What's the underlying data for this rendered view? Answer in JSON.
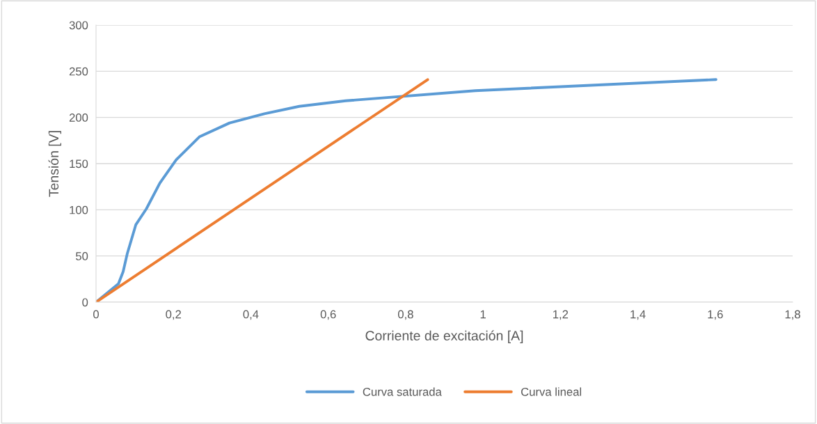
{
  "chart_data": {
    "type": "line",
    "xlabel": "Corriente de excitación [A]",
    "ylabel": "Tensión [V]",
    "xlim": [
      0,
      1.8
    ],
    "xticks": [
      0,
      {
        "value": 0.2,
        "label": "0,2"
      },
      {
        "value": 0.4,
        "label": "0,4"
      },
      {
        "value": 0.6,
        "label": "0,6"
      },
      {
        "value": 0.8,
        "label": "0,8"
      },
      1,
      {
        "value": 1.2,
        "label": "1,2"
      },
      {
        "value": 1.4,
        "label": "1,4"
      },
      {
        "value": 1.6,
        "label": "1,6"
      },
      {
        "value": 1.8,
        "label": "1,8"
      }
    ],
    "ylim": [
      0,
      300
    ],
    "yticks": [
      0,
      50,
      100,
      150,
      200,
      250,
      300
    ],
    "grid": "y",
    "legend": "bottom",
    "marker": "none",
    "line_style": "solid",
    "series": [
      {
        "name": "Curva saturada",
        "color": "#5b9bd5",
        "x": [
          0,
          0.058,
          0.07,
          0.081,
          0.103,
          0.13,
          0.165,
          0.207,
          0.267,
          0.345,
          0.435,
          0.525,
          0.645,
          0.98,
          1.602
        ],
        "values": [
          0,
          20,
          33,
          53,
          84,
          101,
          129,
          154,
          179,
          194,
          204,
          212,
          218,
          229,
          241
        ]
      },
      {
        "name": "Curva lineal",
        "color": "#ed7d31",
        "x": [
          0,
          0.857
        ],
        "values": [
          0,
          241
        ]
      }
    ]
  }
}
